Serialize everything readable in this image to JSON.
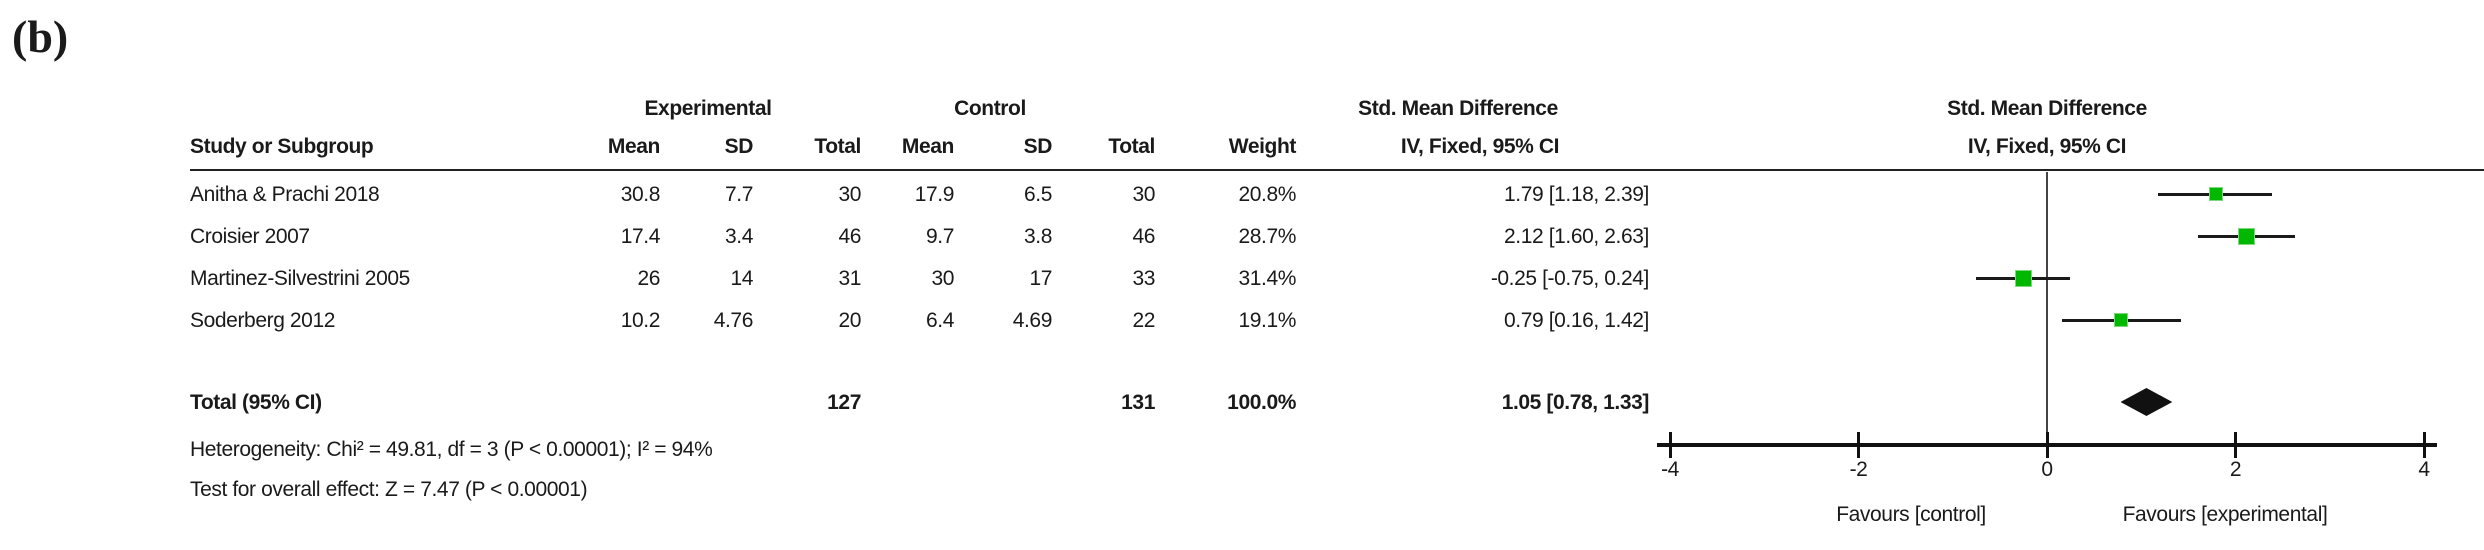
{
  "panel_label": "(b)",
  "table": {
    "group_headers": {
      "experimental": "Experimental",
      "control": "Control",
      "smd": "Std. Mean Difference"
    },
    "column_headers": {
      "study": "Study or Subgroup",
      "mean": "Mean",
      "sd": "SD",
      "total": "Total",
      "weight": "Weight",
      "iv_ci": "IV, Fixed, 95% CI"
    },
    "rows": [
      {
        "study": "Anitha & Prachi 2018",
        "exp_mean": "30.8",
        "exp_sd": "7.7",
        "exp_total": "30",
        "ctrl_mean": "17.9",
        "ctrl_sd": "6.5",
        "ctrl_total": "30",
        "weight": "20.8%",
        "smd_ci": "1.79 [1.18, 2.39]"
      },
      {
        "study": "Croisier 2007",
        "exp_mean": "17.4",
        "exp_sd": "3.4",
        "exp_total": "46",
        "ctrl_mean": "9.7",
        "ctrl_sd": "3.8",
        "ctrl_total": "46",
        "weight": "28.7%",
        "smd_ci": "2.12 [1.60, 2.63]"
      },
      {
        "study": "Martinez-Silvestrini 2005",
        "exp_mean": "26",
        "exp_sd": "14",
        "exp_total": "31",
        "ctrl_mean": "30",
        "ctrl_sd": "17",
        "ctrl_total": "33",
        "weight": "31.4%",
        "smd_ci": "-0.25 [-0.75, 0.24]"
      },
      {
        "study": "Soderberg 2012",
        "exp_mean": "10.2",
        "exp_sd": "4.76",
        "exp_total": "20",
        "ctrl_mean": "6.4",
        "ctrl_sd": "4.69",
        "ctrl_total": "22",
        "weight": "19.1%",
        "smd_ci": "0.79 [0.16, 1.42]"
      }
    ],
    "total_row": {
      "label": "Total (95% CI)",
      "exp_total": "127",
      "ctrl_total": "131",
      "weight": "100.0%",
      "smd_ci": "1.05 [0.78, 1.33]"
    },
    "heterogeneity": "Heterogeneity: Chi² = 49.81, df = 3 (P < 0.00001); I² = 94%",
    "overall_effect": "Test for overall effect: Z = 7.47 (P < 0.00001)"
  },
  "plot": {
    "header_line1": "Std. Mean Difference",
    "header_line2": "IV, Fixed, 95% CI",
    "favours_left": "Favours [control]",
    "favours_right": "Favours [experimental]",
    "marker_color": "#00b800",
    "diamond_color": "#111111",
    "line_color": "#1a1a1a"
  },
  "chart_data": {
    "type": "forest",
    "title": "Std. Mean Difference, IV, Fixed, 95% CI",
    "xlim": [
      -4,
      4
    ],
    "ticks": [
      -4,
      -2,
      0,
      2,
      4
    ],
    "studies": [
      {
        "name": "Anitha & Prachi 2018",
        "est": 1.79,
        "ci_low": 1.18,
        "ci_high": 2.39,
        "weight_pct": 20.8
      },
      {
        "name": "Croisier 2007",
        "est": 2.12,
        "ci_low": 1.6,
        "ci_high": 2.63,
        "weight_pct": 28.7
      },
      {
        "name": "Martinez-Silvestrini 2005",
        "est": -0.25,
        "ci_low": -0.75,
        "ci_high": 0.24,
        "weight_pct": 31.4
      },
      {
        "name": "Soderberg 2012",
        "est": 0.79,
        "ci_low": 0.16,
        "ci_high": 1.42,
        "weight_pct": 19.1
      }
    ],
    "total": {
      "est": 1.05,
      "ci_low": 0.78,
      "ci_high": 1.33
    }
  }
}
